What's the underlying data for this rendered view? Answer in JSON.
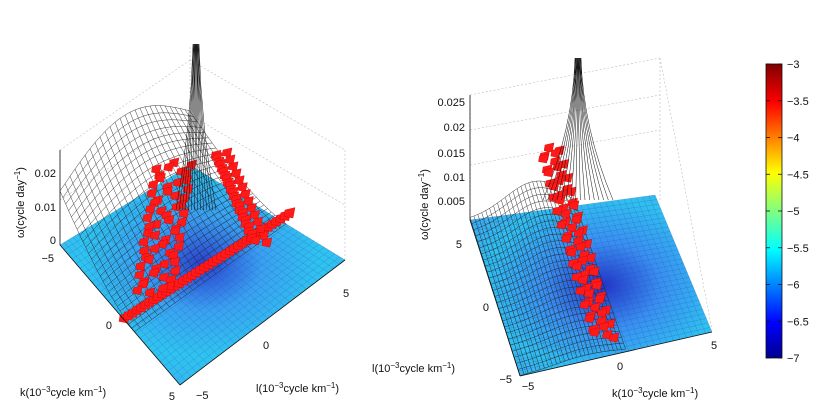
{
  "chart_data": [
    {
      "type": "surface3d",
      "title": "",
      "xlabel": {
        "base": "k(10",
        "sup": "−3",
        "rest": "cycle km",
        "sup2": "−1",
        "close": ")"
      },
      "ylabel": {
        "base": "l(10",
        "sup": "−3",
        "rest": "cycle km",
        "sup2": "−1",
        "close": ")"
      },
      "zlabel": {
        "base": "ω(cycle day",
        "sup": "−1",
        "close": ")"
      },
      "k_ticks": [
        "−5",
        "0",
        "5"
      ],
      "l_ticks": [
        "−5",
        "0",
        "5"
      ],
      "z_ticks": [
        "0",
        "0.01",
        "0.02"
      ],
      "k_range": [
        -5,
        5
      ],
      "l_range": [
        -5,
        5
      ],
      "z_range": [
        0,
        0.025
      ],
      "grid": true
    },
    {
      "type": "surface3d",
      "title": "",
      "xlabel": {
        "base": "k(10",
        "sup": "−3",
        "rest": "cycle km",
        "sup2": "−1",
        "close": ")"
      },
      "ylabel": {
        "base": "l(10",
        "sup": "−3",
        "rest": "cycle km",
        "sup2": "−1",
        "close": ")"
      },
      "zlabel": {
        "base": "ω(cycle day",
        "sup": "−1",
        "close": ")"
      },
      "k_ticks": [
        "−5",
        "0",
        "5"
      ],
      "l_ticks": [
        "5",
        "0",
        "−5"
      ],
      "z_ticks": [
        "0.005",
        "0.01",
        "0.015",
        "0.02",
        "0.025"
      ],
      "k_range": [
        -5,
        5
      ],
      "l_range": [
        -5,
        5
      ],
      "z_range": [
        0,
        0.025
      ],
      "grid": true
    }
  ],
  "colorbar": {
    "ticks": [
      "−3",
      "−3.5",
      "−4",
      "−4.5",
      "−5",
      "−5.5",
      "−6",
      "−6.5",
      "−7"
    ],
    "range": [
      -7,
      -3
    ],
    "colors": [
      "#00008f",
      "#0000ff",
      "#0080ff",
      "#00ffff",
      "#80ff80",
      "#ffff00",
      "#ff8000",
      "#ff0000",
      "#800000"
    ]
  }
}
